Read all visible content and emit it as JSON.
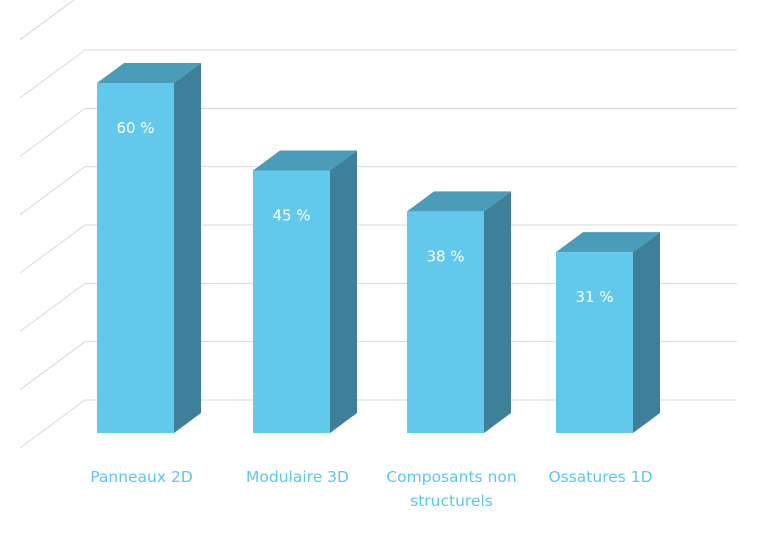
{
  "chart_data": {
    "type": "bar",
    "style": "3d-column",
    "title": "",
    "xlabel": "",
    "ylabel": "",
    "categories": [
      [
        "Panneaux 2D"
      ],
      [
        "Modulaire 3D"
      ],
      [
        "Composants non",
        "structurels"
      ],
      [
        "Ossatures 1D"
      ]
    ],
    "values": [
      60,
      45,
      38,
      31
    ],
    "value_labels": [
      "60 %",
      "45 %",
      "38 %",
      "31 %"
    ],
    "ylim": [
      0,
      70
    ],
    "grid": true,
    "legend": "none",
    "colors": {
      "bar_front": "#62c9ec",
      "bar_top": "#4a9cb8",
      "bar_side": "#3e809a",
      "gridline": "#d9d9d9",
      "category_text": "#5bc8ea",
      "value_text": "#ffffff"
    }
  }
}
